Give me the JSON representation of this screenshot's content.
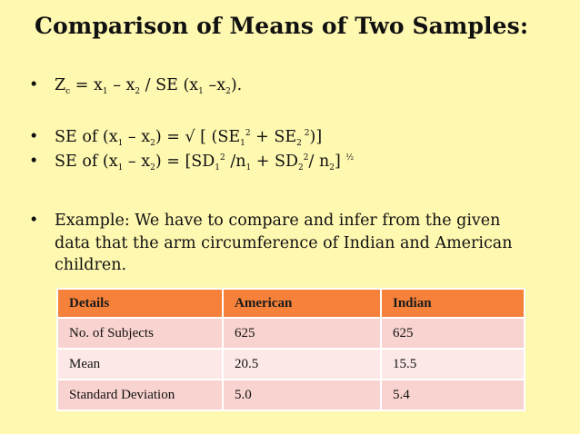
{
  "slide": {
    "title": "Comparison of Means of Two Samples:",
    "bullet_marker": "•",
    "formula1": {
      "Z": "Z",
      "Z_sub": "c",
      "eq": " = x",
      "x1_sub": "1",
      "minus": " – x",
      "x2_sub": "2",
      "mid": " /  SE (x",
      "s1": "1",
      "mid2": " –x",
      "s2": "2",
      "end": ")."
    },
    "formula2": {
      "a": "SE of  (x",
      "a1": "1",
      "b": " – x",
      "b2": "2",
      "c": ") = √ [ (SE",
      "c1": "1",
      "csup": "2",
      "d": " + SE",
      "d2": "2",
      "dsup": " 2",
      "e": ")]"
    },
    "formula3": {
      "a": "SE of  (x",
      "a1": "1",
      "b": " – x",
      "b2": "2",
      "c": ") = [SD",
      "c1": "1",
      "csup": "2",
      "d": " /n",
      "d1": "1",
      "e": " + SD",
      "e2": "2",
      "esup": "2",
      "f": "/ n",
      "f2": "2",
      "g": "] ",
      "gsup": "½"
    },
    "example_line1": "Example:   We have to compare and infer from the given",
    "example_line2": "data that the arm circumference of Indian and American",
    "example_line3": "children."
  },
  "table": {
    "headers": [
      "Details",
      "American",
      "Indian"
    ],
    "rows": [
      [
        "No. of Subjects",
        "625",
        "625"
      ],
      [
        "Mean",
        "20.5",
        "15.5"
      ],
      [
        "Standard Deviation",
        "5.0",
        "5.4"
      ]
    ]
  },
  "colors": {
    "background": "#FFF8B0",
    "header": "#F5813A",
    "row_dark": "#F9D3CF",
    "row_light": "#FCE9E7"
  }
}
